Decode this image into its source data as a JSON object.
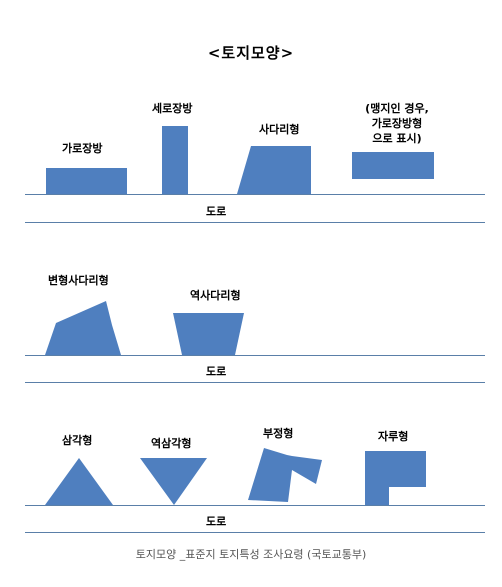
{
  "title": "<토지모양>",
  "road_label": "도로",
  "caption": "토지모양 _표준지 토지특성 조사요령 (국토교통부)",
  "shape_color": "#4f7fbf",
  "line_color": "#5a7fa8",
  "rows": [
    {
      "shapes": [
        {
          "label": "가로장방"
        },
        {
          "label": "세로장방"
        },
        {
          "label": "사다리형"
        },
        {
          "label_lines": [
            "(맹지인 경우,",
            "가로장방형",
            "으로 표시)"
          ]
        }
      ]
    },
    {
      "shapes": [
        {
          "label": "변형사다리형"
        },
        {
          "label": "역사다리형"
        }
      ]
    },
    {
      "shapes": [
        {
          "label": "삼각형"
        },
        {
          "label": "역삼각형"
        },
        {
          "label": "부정형"
        },
        {
          "label": "자루형"
        }
      ]
    }
  ]
}
